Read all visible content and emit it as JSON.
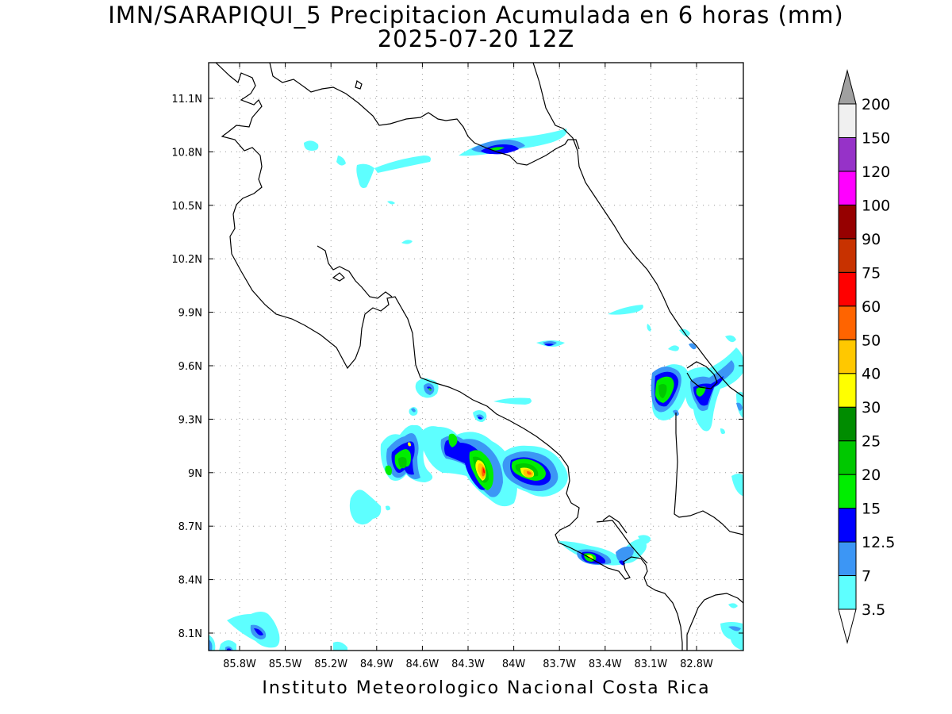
{
  "title": {
    "line1": "IMN/SARAPIQUI_5 Precipitacion Acumulada en 6 horas (mm)",
    "line2": "2025-07-20 12Z"
  },
  "footer": "Instituto Meteorologico Nacional Costa Rica",
  "map": {
    "lat_labels": [
      "11.1N",
      "10.8N",
      "10.5N",
      "10.2N",
      "9.9N",
      "9.6N",
      "9.3N",
      "9N",
      "8.7N",
      "8.4N",
      "8.1N"
    ],
    "lon_labels": [
      "85.8W",
      "85.5W",
      "85.2W",
      "84.9W",
      "84.6W",
      "84.3W",
      "84W",
      "83.7W",
      "83.4W",
      "83.1W",
      "82.8W"
    ],
    "grid": true
  },
  "colorbar": {
    "labels": [
      "3.5",
      "7",
      "12.5",
      "15",
      "20",
      "25",
      "30",
      "40",
      "50",
      "60",
      "75",
      "90",
      "100",
      "120",
      "150",
      "200"
    ],
    "colors": [
      "#5effff",
      "#3c96f5",
      "#0000ff",
      "#00ee00",
      "#00c800",
      "#008c00",
      "#ffff00",
      "#ffc800",
      "#ff6400",
      "#ff0000",
      "#c83200",
      "#960000",
      "#ff00ff",
      "#9632c8",
      "#f0f0f0"
    ],
    "under_color": "#ffffff",
    "over_color": "#a0a0a0"
  }
}
